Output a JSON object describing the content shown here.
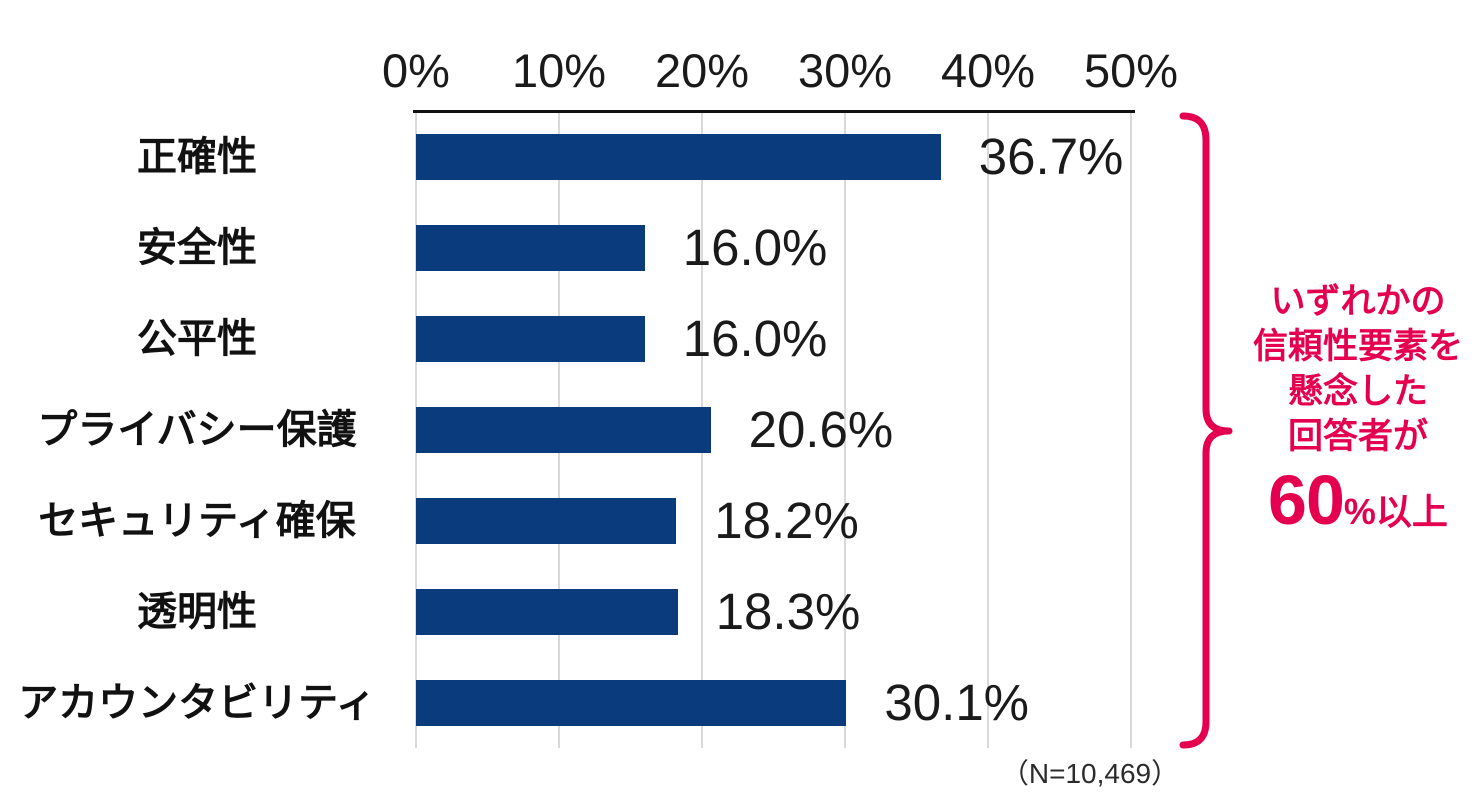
{
  "chart_data": {
    "type": "bar",
    "orientation": "horizontal",
    "categories": [
      "正確性",
      "安全性",
      "公平性",
      "プライバシー保護",
      "セキュリティ確保",
      "透明性",
      "アカウンタビリティ"
    ],
    "values": [
      36.7,
      16.0,
      16.0,
      20.6,
      18.2,
      18.3,
      30.1
    ],
    "value_labels": [
      "36.7%",
      "16.0%",
      "16.0%",
      "20.6%",
      "18.2%",
      "18.3%",
      "30.1%"
    ],
    "x_axis": {
      "tick_labels": [
        "0%",
        "10%",
        "20%",
        "30%",
        "40%",
        "50%"
      ],
      "tick_values": [
        0,
        10,
        20,
        30,
        40,
        50
      ],
      "range": [
        0,
        50
      ],
      "position": "top"
    },
    "grid": true,
    "legend": "none",
    "colors": {
      "bar": "#093B7D",
      "annotation": "#E4004F",
      "grid": "#D9D9D9",
      "axis": "#111111",
      "text": "#1A1A1A"
    },
    "annotation": {
      "lines": [
        "いずれかの",
        "信頼性要素を",
        "懸念した",
        "回答者が"
      ],
      "big_number": "60",
      "big_suffix": "%以上"
    },
    "footnote": "（N=10,469）"
  }
}
